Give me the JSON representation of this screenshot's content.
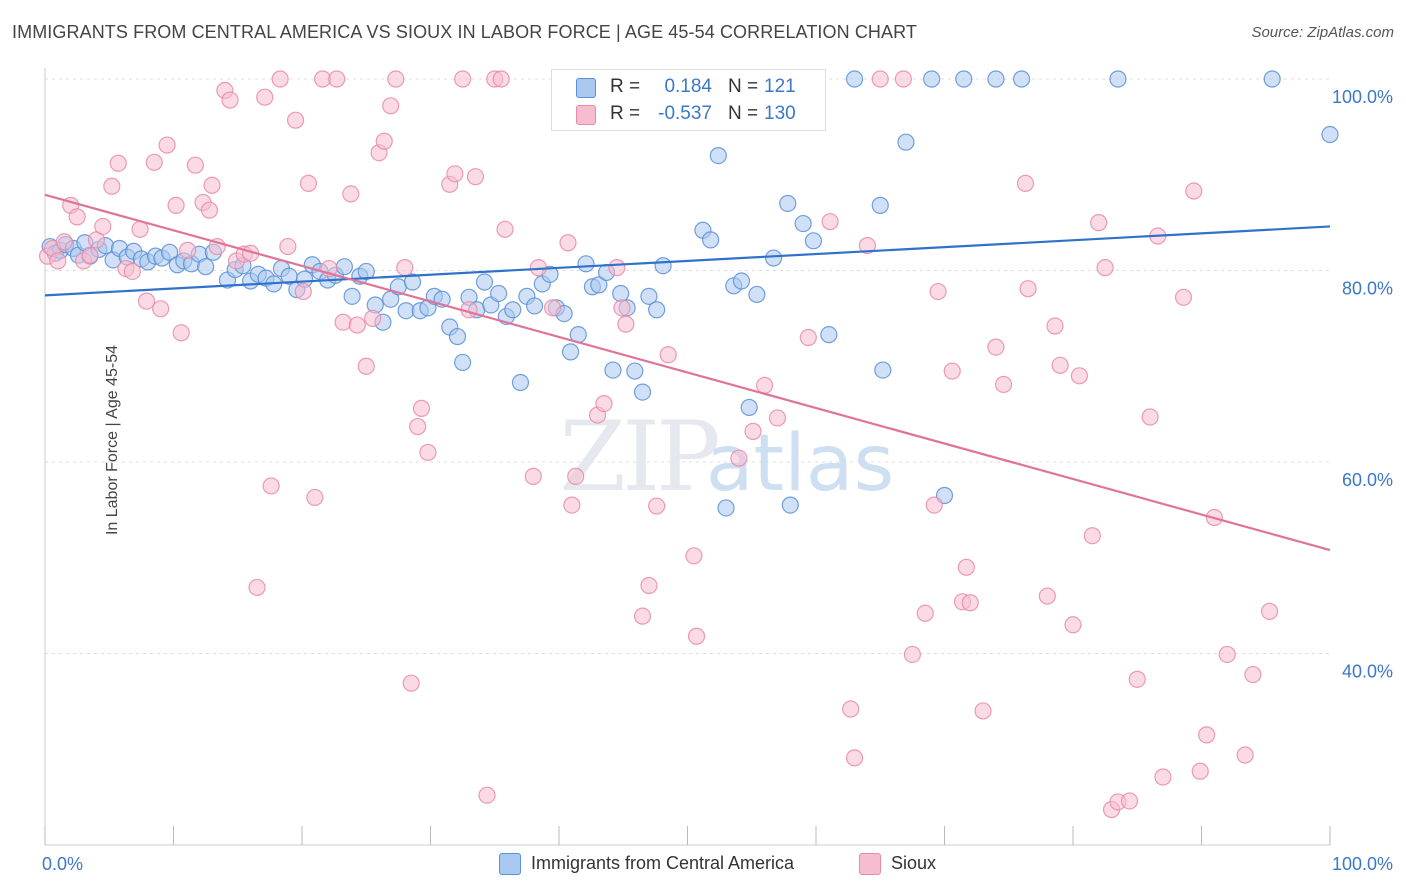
{
  "title": "IMMIGRANTS FROM CENTRAL AMERICA VS SIOUX IN LABOR FORCE | AGE 45-54 CORRELATION CHART",
  "source": "Source: ZipAtlas.com",
  "watermark": {
    "zip": "ZIP",
    "atlas": "atlas"
  },
  "colors": {
    "blue_fill": "#a9c8f0",
    "blue_stroke": "#5b8fd6",
    "blue_line": "#2f72c9",
    "pink_fill": "#f6bdd0",
    "pink_stroke": "#e98aa9",
    "pink_line": "#e0739a",
    "tick_text": "#3b78c8",
    "grid": "#dddddd"
  },
  "legend": {
    "rows": [
      {
        "r_label": "R =",
        "r_value": "0.184",
        "n_label": "N =",
        "n_value": "121"
      },
      {
        "r_label": "R =",
        "r_value": "-0.537",
        "n_label": "N =",
        "n_value": "130"
      }
    ]
  },
  "bottom_legend": {
    "blue": "Immigrants from Central America",
    "pink": "Sioux"
  },
  "chart_data": {
    "type": "scatter",
    "title": "IMMIGRANTS FROM CENTRAL AMERICA VS SIOUX IN LABOR FORCE | AGE 45-54 CORRELATION CHART",
    "ylabel": "In Labor Force | Age 45-54",
    "xlabel": "",
    "xlim": [
      0,
      100
    ],
    "ylim": [
      20,
      100
    ],
    "x_tick_labels": [
      "0.0%",
      "100.0%"
    ],
    "y_ticks": [
      40,
      60,
      80,
      100
    ],
    "y_tick_labels": [
      "40.0%",
      "60.0%",
      "80.0%",
      "100.0%"
    ],
    "grid": true,
    "legend_position": "top-center",
    "series": [
      {
        "name": "Immigrants from Central America",
        "color": "blue",
        "trend": {
          "x": [
            0,
            100
          ],
          "y": [
            77.4,
            84.6
          ]
        },
        "points": [
          [
            0.4,
            82.5
          ],
          [
            0.8,
            81.8
          ],
          [
            1.2,
            82.1
          ],
          [
            1.6,
            82.7
          ],
          [
            2.2,
            82.3
          ],
          [
            2.6,
            81.6
          ],
          [
            3.1,
            82.9
          ],
          [
            3.5,
            81.5
          ],
          [
            4.2,
            82.2
          ],
          [
            4.7,
            82.6
          ],
          [
            5.3,
            81.1
          ],
          [
            5.8,
            82.3
          ],
          [
            6.4,
            81.4
          ],
          [
            6.9,
            82.0
          ],
          [
            7.5,
            81.2
          ],
          [
            8.0,
            80.9
          ],
          [
            8.6,
            81.5
          ],
          [
            9.1,
            81.3
          ],
          [
            9.7,
            81.9
          ],
          [
            10.3,
            80.6
          ],
          [
            10.8,
            81.0
          ],
          [
            11.4,
            80.7
          ],
          [
            12.0,
            81.7
          ],
          [
            12.5,
            80.4
          ],
          [
            13.1,
            81.9
          ],
          [
            14.2,
            79.0
          ],
          [
            14.8,
            80.1
          ],
          [
            15.4,
            80.5
          ],
          [
            16.0,
            78.9
          ],
          [
            16.6,
            79.6
          ],
          [
            17.2,
            79.2
          ],
          [
            17.8,
            78.6
          ],
          [
            18.4,
            80.2
          ],
          [
            19.0,
            79.4
          ],
          [
            19.6,
            78.0
          ],
          [
            20.2,
            79.1
          ],
          [
            20.8,
            80.6
          ],
          [
            21.4,
            79.9
          ],
          [
            22.0,
            79.0
          ],
          [
            22.6,
            79.5
          ],
          [
            23.3,
            80.4
          ],
          [
            23.9,
            77.3
          ],
          [
            24.5,
            79.4
          ],
          [
            25.0,
            79.9
          ],
          [
            25.7,
            76.4
          ],
          [
            26.3,
            74.6
          ],
          [
            26.9,
            77.0
          ],
          [
            27.5,
            78.3
          ],
          [
            28.1,
            75.8
          ],
          [
            28.6,
            78.8
          ],
          [
            29.2,
            75.8
          ],
          [
            29.8,
            76.1
          ],
          [
            30.3,
            77.3
          ],
          [
            30.9,
            77.0
          ],
          [
            31.5,
            74.1
          ],
          [
            32.1,
            73.1
          ],
          [
            32.5,
            70.4
          ],
          [
            33.0,
            77.2
          ],
          [
            33.6,
            75.9
          ],
          [
            34.2,
            78.8
          ],
          [
            34.7,
            76.4
          ],
          [
            35.3,
            77.6
          ],
          [
            35.9,
            75.2
          ],
          [
            36.4,
            75.9
          ],
          [
            37.0,
            68.3
          ],
          [
            37.5,
            77.3
          ],
          [
            38.1,
            76.3
          ],
          [
            38.7,
            78.6
          ],
          [
            39.3,
            79.6
          ],
          [
            39.8,
            76.1
          ],
          [
            40.4,
            75.5
          ],
          [
            40.9,
            71.5
          ],
          [
            41.5,
            73.3
          ],
          [
            42.1,
            80.7
          ],
          [
            42.6,
            78.3
          ],
          [
            43.1,
            78.5
          ],
          [
            43.7,
            79.8
          ],
          [
            44.2,
            69.6
          ],
          [
            44.8,
            77.6
          ],
          [
            45.3,
            76.1
          ],
          [
            45.9,
            69.5
          ],
          [
            46.5,
            67.3
          ],
          [
            47.0,
            77.3
          ],
          [
            47.6,
            75.9
          ],
          [
            48.1,
            80.5
          ],
          [
            48.7,
            100
          ],
          [
            50.0,
            100
          ],
          [
            51.2,
            84.2
          ],
          [
            51.8,
            83.2
          ],
          [
            52.4,
            92.0
          ],
          [
            53.0,
            55.2
          ],
          [
            53.6,
            78.4
          ],
          [
            54.2,
            78.9
          ],
          [
            54.8,
            65.7
          ],
          [
            55.4,
            77.5
          ],
          [
            56.7,
            81.3
          ],
          [
            57.8,
            87.0
          ],
          [
            58.0,
            55.5
          ],
          [
            59.0,
            84.9
          ],
          [
            59.8,
            83.1
          ],
          [
            61.0,
            73.3
          ],
          [
            63.0,
            100
          ],
          [
            65.0,
            86.8
          ],
          [
            65.2,
            69.6
          ],
          [
            67.0,
            93.4
          ],
          [
            69.0,
            100
          ],
          [
            70.0,
            56.5
          ],
          [
            71.5,
            100
          ],
          [
            74.0,
            100
          ],
          [
            76.0,
            100
          ],
          [
            83.5,
            100
          ],
          [
            95.5,
            100
          ],
          [
            100,
            94.2
          ]
        ]
      },
      {
        "name": "Sioux",
        "color": "pink",
        "trend": {
          "x": [
            0,
            100
          ],
          "y": [
            87.9,
            50.8
          ]
        },
        "points": [
          [
            0.2,
            81.5
          ],
          [
            0.6,
            82.3
          ],
          [
            1.0,
            81.0
          ],
          [
            1.5,
            83.0
          ],
          [
            2.0,
            86.8
          ],
          [
            2.5,
            85.6
          ],
          [
            3.0,
            81.0
          ],
          [
            3.5,
            81.6
          ],
          [
            4.0,
            83.2
          ],
          [
            4.5,
            84.6
          ],
          [
            5.2,
            88.8
          ],
          [
            5.7,
            91.2
          ],
          [
            6.3,
            80.2
          ],
          [
            6.8,
            79.9
          ],
          [
            7.4,
            84.3
          ],
          [
            7.9,
            76.8
          ],
          [
            8.5,
            91.3
          ],
          [
            9.0,
            76.0
          ],
          [
            9.5,
            93.1
          ],
          [
            10.2,
            86.8
          ],
          [
            10.6,
            73.5
          ],
          [
            11.1,
            82.1
          ],
          [
            11.7,
            91.0
          ],
          [
            12.3,
            87.1
          ],
          [
            12.8,
            86.3
          ],
          [
            13.4,
            82.5
          ],
          [
            13.0,
            88.9
          ],
          [
            14.0,
            98.8
          ],
          [
            14.4,
            97.8
          ],
          [
            14.9,
            81.0
          ],
          [
            15.5,
            81.7
          ],
          [
            16.0,
            81.8
          ],
          [
            16.5,
            46.9
          ],
          [
            17.1,
            98.1
          ],
          [
            17.6,
            57.5
          ],
          [
            18.3,
            100
          ],
          [
            18.9,
            82.5
          ],
          [
            19.5,
            95.7
          ],
          [
            20.1,
            77.8
          ],
          [
            20.5,
            89.1
          ],
          [
            21.0,
            56.3
          ],
          [
            21.6,
            100
          ],
          [
            22.1,
            80.2
          ],
          [
            22.7,
            100
          ],
          [
            23.2,
            74.6
          ],
          [
            23.8,
            88.0
          ],
          [
            24.3,
            74.3
          ],
          [
            25.0,
            70.0
          ],
          [
            25.5,
            75.0
          ],
          [
            26.0,
            92.3
          ],
          [
            26.4,
            93.5
          ],
          [
            26.9,
            97.2
          ],
          [
            27.3,
            100
          ],
          [
            28.0,
            80.3
          ],
          [
            28.5,
            36.9
          ],
          [
            29.0,
            63.7
          ],
          [
            29.3,
            65.6
          ],
          [
            29.8,
            61.0
          ],
          [
            31.5,
            89.0
          ],
          [
            31.9,
            90.1
          ],
          [
            32.5,
            100
          ],
          [
            33.0,
            75.9
          ],
          [
            33.5,
            89.8
          ],
          [
            34.4,
            25.2
          ],
          [
            35.0,
            100
          ],
          [
            35.5,
            100
          ],
          [
            35.8,
            84.3
          ],
          [
            38.0,
            58.5
          ],
          [
            38.4,
            80.3
          ],
          [
            39.5,
            76.1
          ],
          [
            40.7,
            82.9
          ],
          [
            41.0,
            55.5
          ],
          [
            41.3,
            58.5
          ],
          [
            43.0,
            64.9
          ],
          [
            43.5,
            66.1
          ],
          [
            44.5,
            80.3
          ],
          [
            44.9,
            76.1
          ],
          [
            45.2,
            74.4
          ],
          [
            46.5,
            43.9
          ],
          [
            47.0,
            47.1
          ],
          [
            47.6,
            55.4
          ],
          [
            48.5,
            71.2
          ],
          [
            50.5,
            50.2
          ],
          [
            50.7,
            41.8
          ],
          [
            54.0,
            60.4
          ],
          [
            55.1,
            63.2
          ],
          [
            56.0,
            68.0
          ],
          [
            57.0,
            64.6
          ],
          [
            59.4,
            73.0
          ],
          [
            61.1,
            85.1
          ],
          [
            62.7,
            34.2
          ],
          [
            63.0,
            29.1
          ],
          [
            64.0,
            82.6
          ],
          [
            65.0,
            100
          ],
          [
            66.8,
            100
          ],
          [
            67.5,
            39.9
          ],
          [
            68.5,
            44.2
          ],
          [
            69.2,
            55.5
          ],
          [
            69.5,
            77.8
          ],
          [
            70.6,
            69.5
          ],
          [
            71.4,
            45.4
          ],
          [
            71.7,
            49.0
          ],
          [
            72.0,
            45.3
          ],
          [
            73.0,
            34.0
          ],
          [
            74.0,
            72.0
          ],
          [
            74.6,
            68.1
          ],
          [
            76.3,
            89.1
          ],
          [
            76.5,
            78.1
          ],
          [
            78.0,
            46.0
          ],
          [
            78.6,
            74.2
          ],
          [
            79.0,
            70.1
          ],
          [
            80.0,
            43.0
          ],
          [
            80.5,
            69.0
          ],
          [
            81.5,
            52.3
          ],
          [
            82.0,
            85.0
          ],
          [
            82.5,
            80.3
          ],
          [
            83.0,
            23.7
          ],
          [
            83.5,
            24.5
          ],
          [
            84.4,
            24.6
          ],
          [
            85.0,
            37.3
          ],
          [
            86.0,
            64.7
          ],
          [
            86.6,
            83.6
          ],
          [
            87.0,
            27.1
          ],
          [
            88.6,
            77.2
          ],
          [
            89.4,
            88.3
          ],
          [
            89.9,
            27.7
          ],
          [
            90.4,
            31.5
          ],
          [
            91.0,
            54.2
          ],
          [
            92.0,
            39.9
          ],
          [
            93.4,
            29.4
          ],
          [
            94.0,
            37.8
          ],
          [
            95.3,
            44.4
          ]
        ]
      }
    ]
  }
}
